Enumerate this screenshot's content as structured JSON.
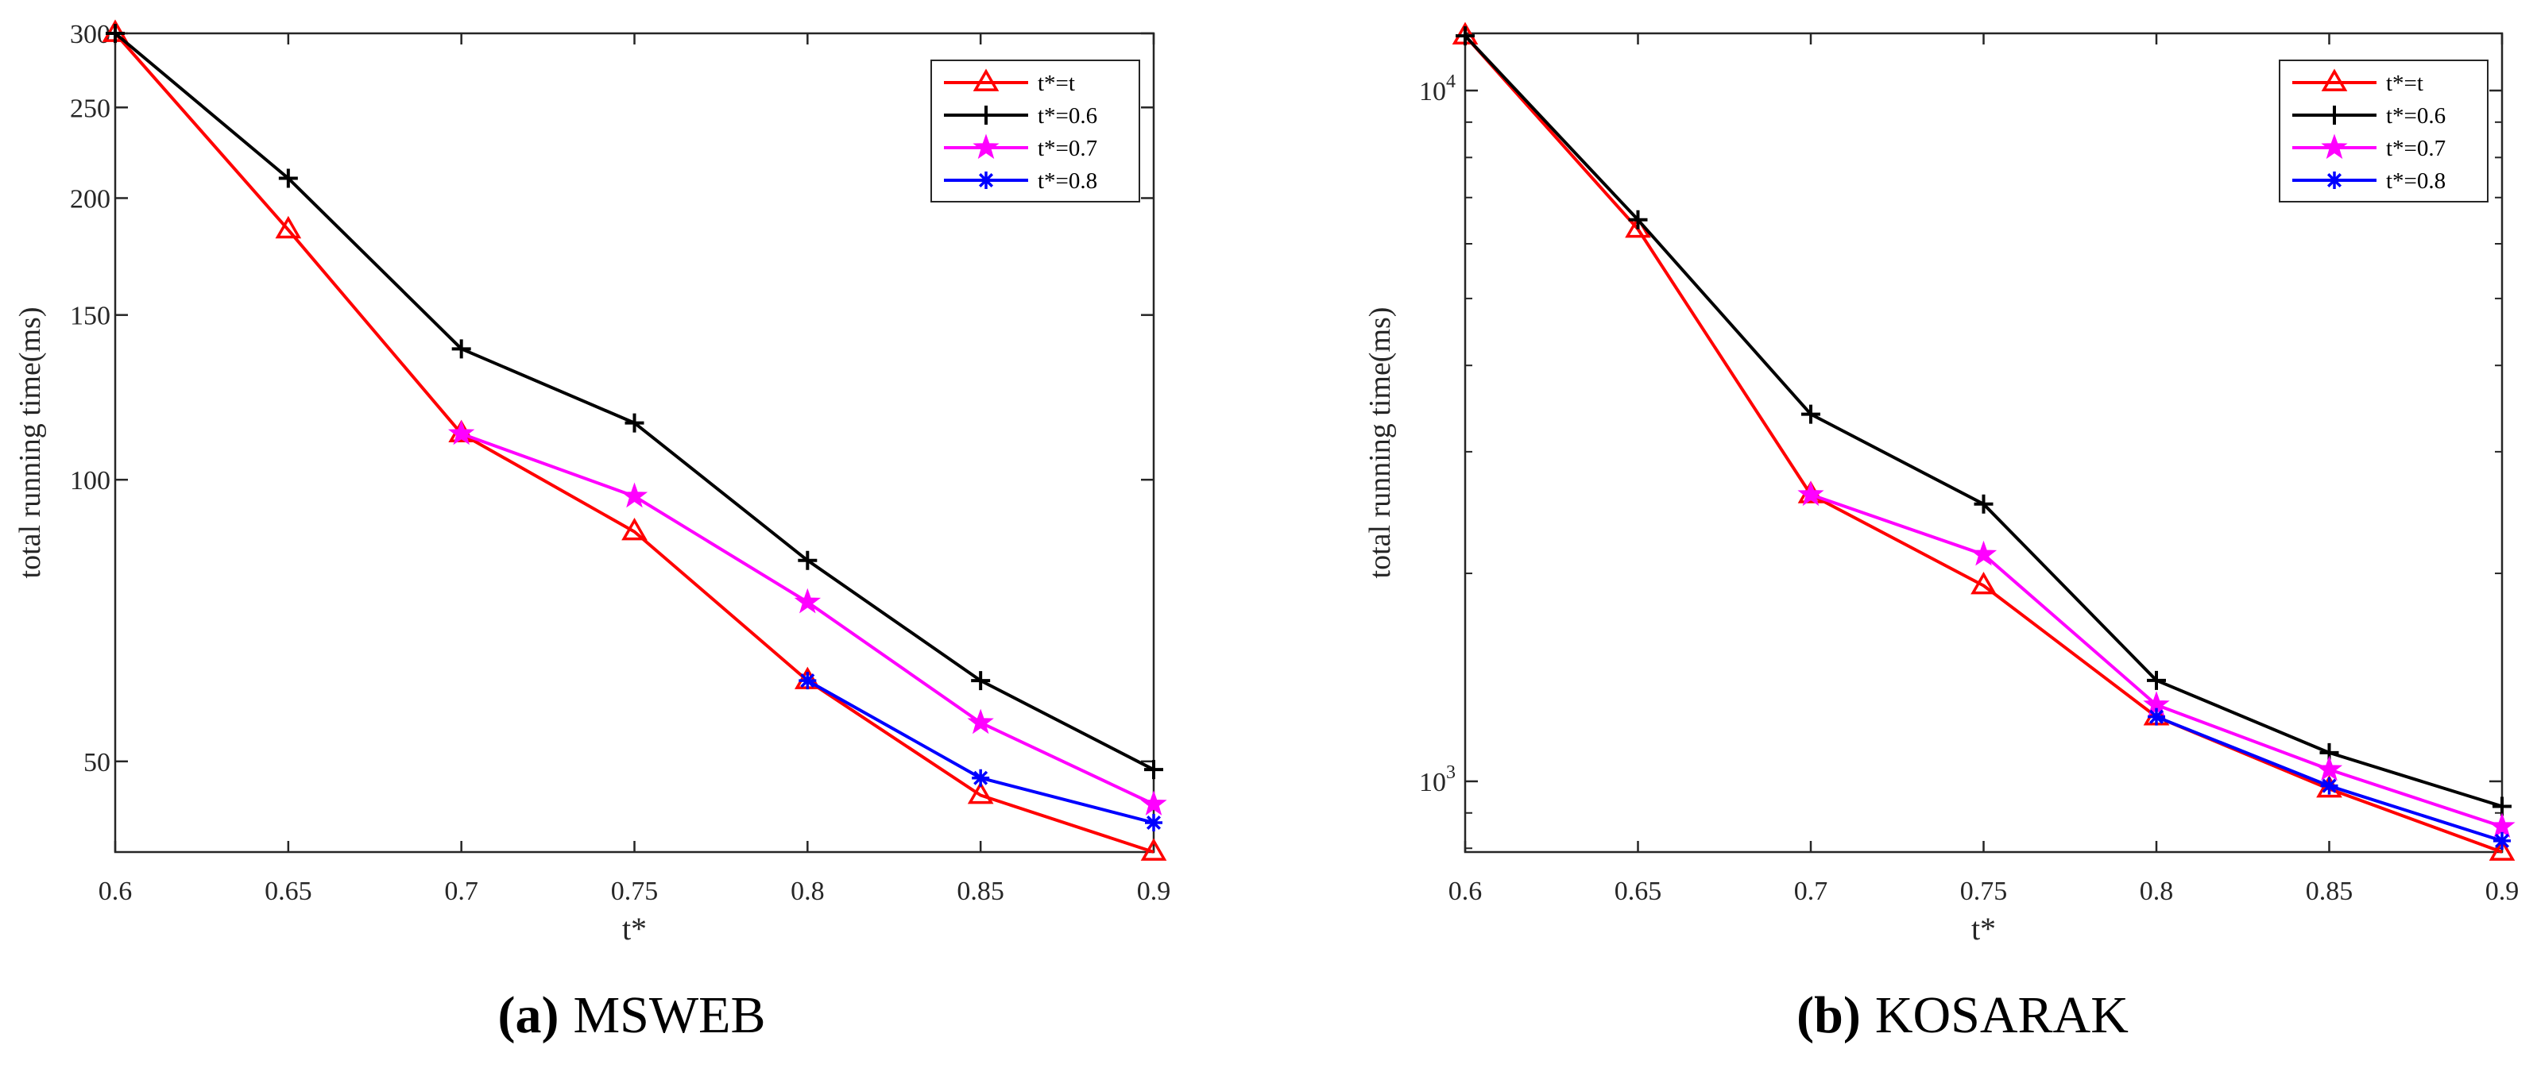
{
  "chart_data": [
    {
      "type": "line",
      "panel_label": "(a)",
      "caption": "MSWEB",
      "xlabel": "t*",
      "ylabel": "total running time(ms)",
      "yscale": "log",
      "xlim": [
        0.6,
        0.9
      ],
      "ylim": [
        40,
        300
      ],
      "x_ticks": [
        0.6,
        0.65,
        0.7,
        0.75,
        0.8,
        0.85,
        0.9
      ],
      "x_tick_labels": [
        "0.6",
        "0.65",
        "0.7",
        "0.75",
        "0.8",
        "0.85",
        "0.9"
      ],
      "y_ticks": [
        50,
        100,
        150,
        200,
        250,
        300
      ],
      "y_tick_labels": [
        "50",
        "100",
        "150",
        "200",
        "250",
        "300"
      ],
      "y_minor_ticks": [],
      "legend_position": "top-right",
      "series": [
        {
          "name": "t*=t",
          "color": "#ff0000",
          "marker": "triangle",
          "x": [
            0.6,
            0.65,
            0.7,
            0.75,
            0.8,
            0.85,
            0.9
          ],
          "values": [
            300,
            185,
            112,
            88,
            61,
            46,
            40
          ]
        },
        {
          "name": "t*=0.6",
          "color": "#000000",
          "marker": "plus",
          "x": [
            0.6,
            0.65,
            0.7,
            0.75,
            0.8,
            0.85,
            0.9
          ],
          "values": [
            300,
            210,
            138,
            115,
            82,
            61,
            49
          ]
        },
        {
          "name": "t*=0.7",
          "color": "#ff00ff",
          "marker": "star",
          "x": [
            0.7,
            0.75,
            0.8,
            0.85,
            0.9
          ],
          "values": [
            112,
            96,
            74,
            55,
            45
          ]
        },
        {
          "name": "t*=0.8",
          "color": "#0000ff",
          "marker": "asterisk",
          "x": [
            0.8,
            0.85,
            0.9
          ],
          "values": [
            61,
            48,
            43
          ]
        }
      ]
    },
    {
      "type": "line",
      "panel_label": "(b)",
      "caption": "KOSARAK",
      "xlabel": "t*",
      "ylabel": "total running time(ms)",
      "yscale": "log",
      "xlim": [
        0.6,
        0.9
      ],
      "ylim": [
        790,
        12100
      ],
      "x_ticks": [
        0.6,
        0.65,
        0.7,
        0.75,
        0.8,
        0.85,
        0.9
      ],
      "x_tick_labels": [
        "0.6",
        "0.65",
        "0.7",
        "0.75",
        "0.8",
        "0.85",
        "0.9"
      ],
      "y_ticks": [
        1000,
        10000
      ],
      "y_tick_labels": [
        "10^3",
        "10^4"
      ],
      "y_minor_ticks": [
        800,
        900,
        2000,
        3000,
        4000,
        5000,
        6000,
        7000,
        8000,
        9000
      ],
      "legend_position": "top-right",
      "series": [
        {
          "name": "t*=t",
          "color": "#ff0000",
          "marker": "triangle",
          "x": [
            0.6,
            0.65,
            0.7,
            0.75,
            0.8,
            0.85,
            0.9
          ],
          "values": [
            12000,
            6300,
            2600,
            1920,
            1240,
            975,
            790
          ]
        },
        {
          "name": "t*=0.6",
          "color": "#000000",
          "marker": "plus",
          "x": [
            0.6,
            0.65,
            0.7,
            0.75,
            0.8,
            0.85,
            0.9
          ],
          "values": [
            12000,
            6500,
            3400,
            2520,
            1400,
            1100,
            920
          ]
        },
        {
          "name": "t*=0.7",
          "color": "#ff00ff",
          "marker": "star",
          "x": [
            0.7,
            0.75,
            0.8,
            0.85,
            0.9
          ],
          "values": [
            2600,
            2130,
            1290,
            1040,
            860
          ]
        },
        {
          "name": "t*=0.8",
          "color": "#0000ff",
          "marker": "asterisk",
          "x": [
            0.8,
            0.85,
            0.9
          ],
          "values": [
            1240,
            985,
            820
          ]
        }
      ]
    }
  ]
}
